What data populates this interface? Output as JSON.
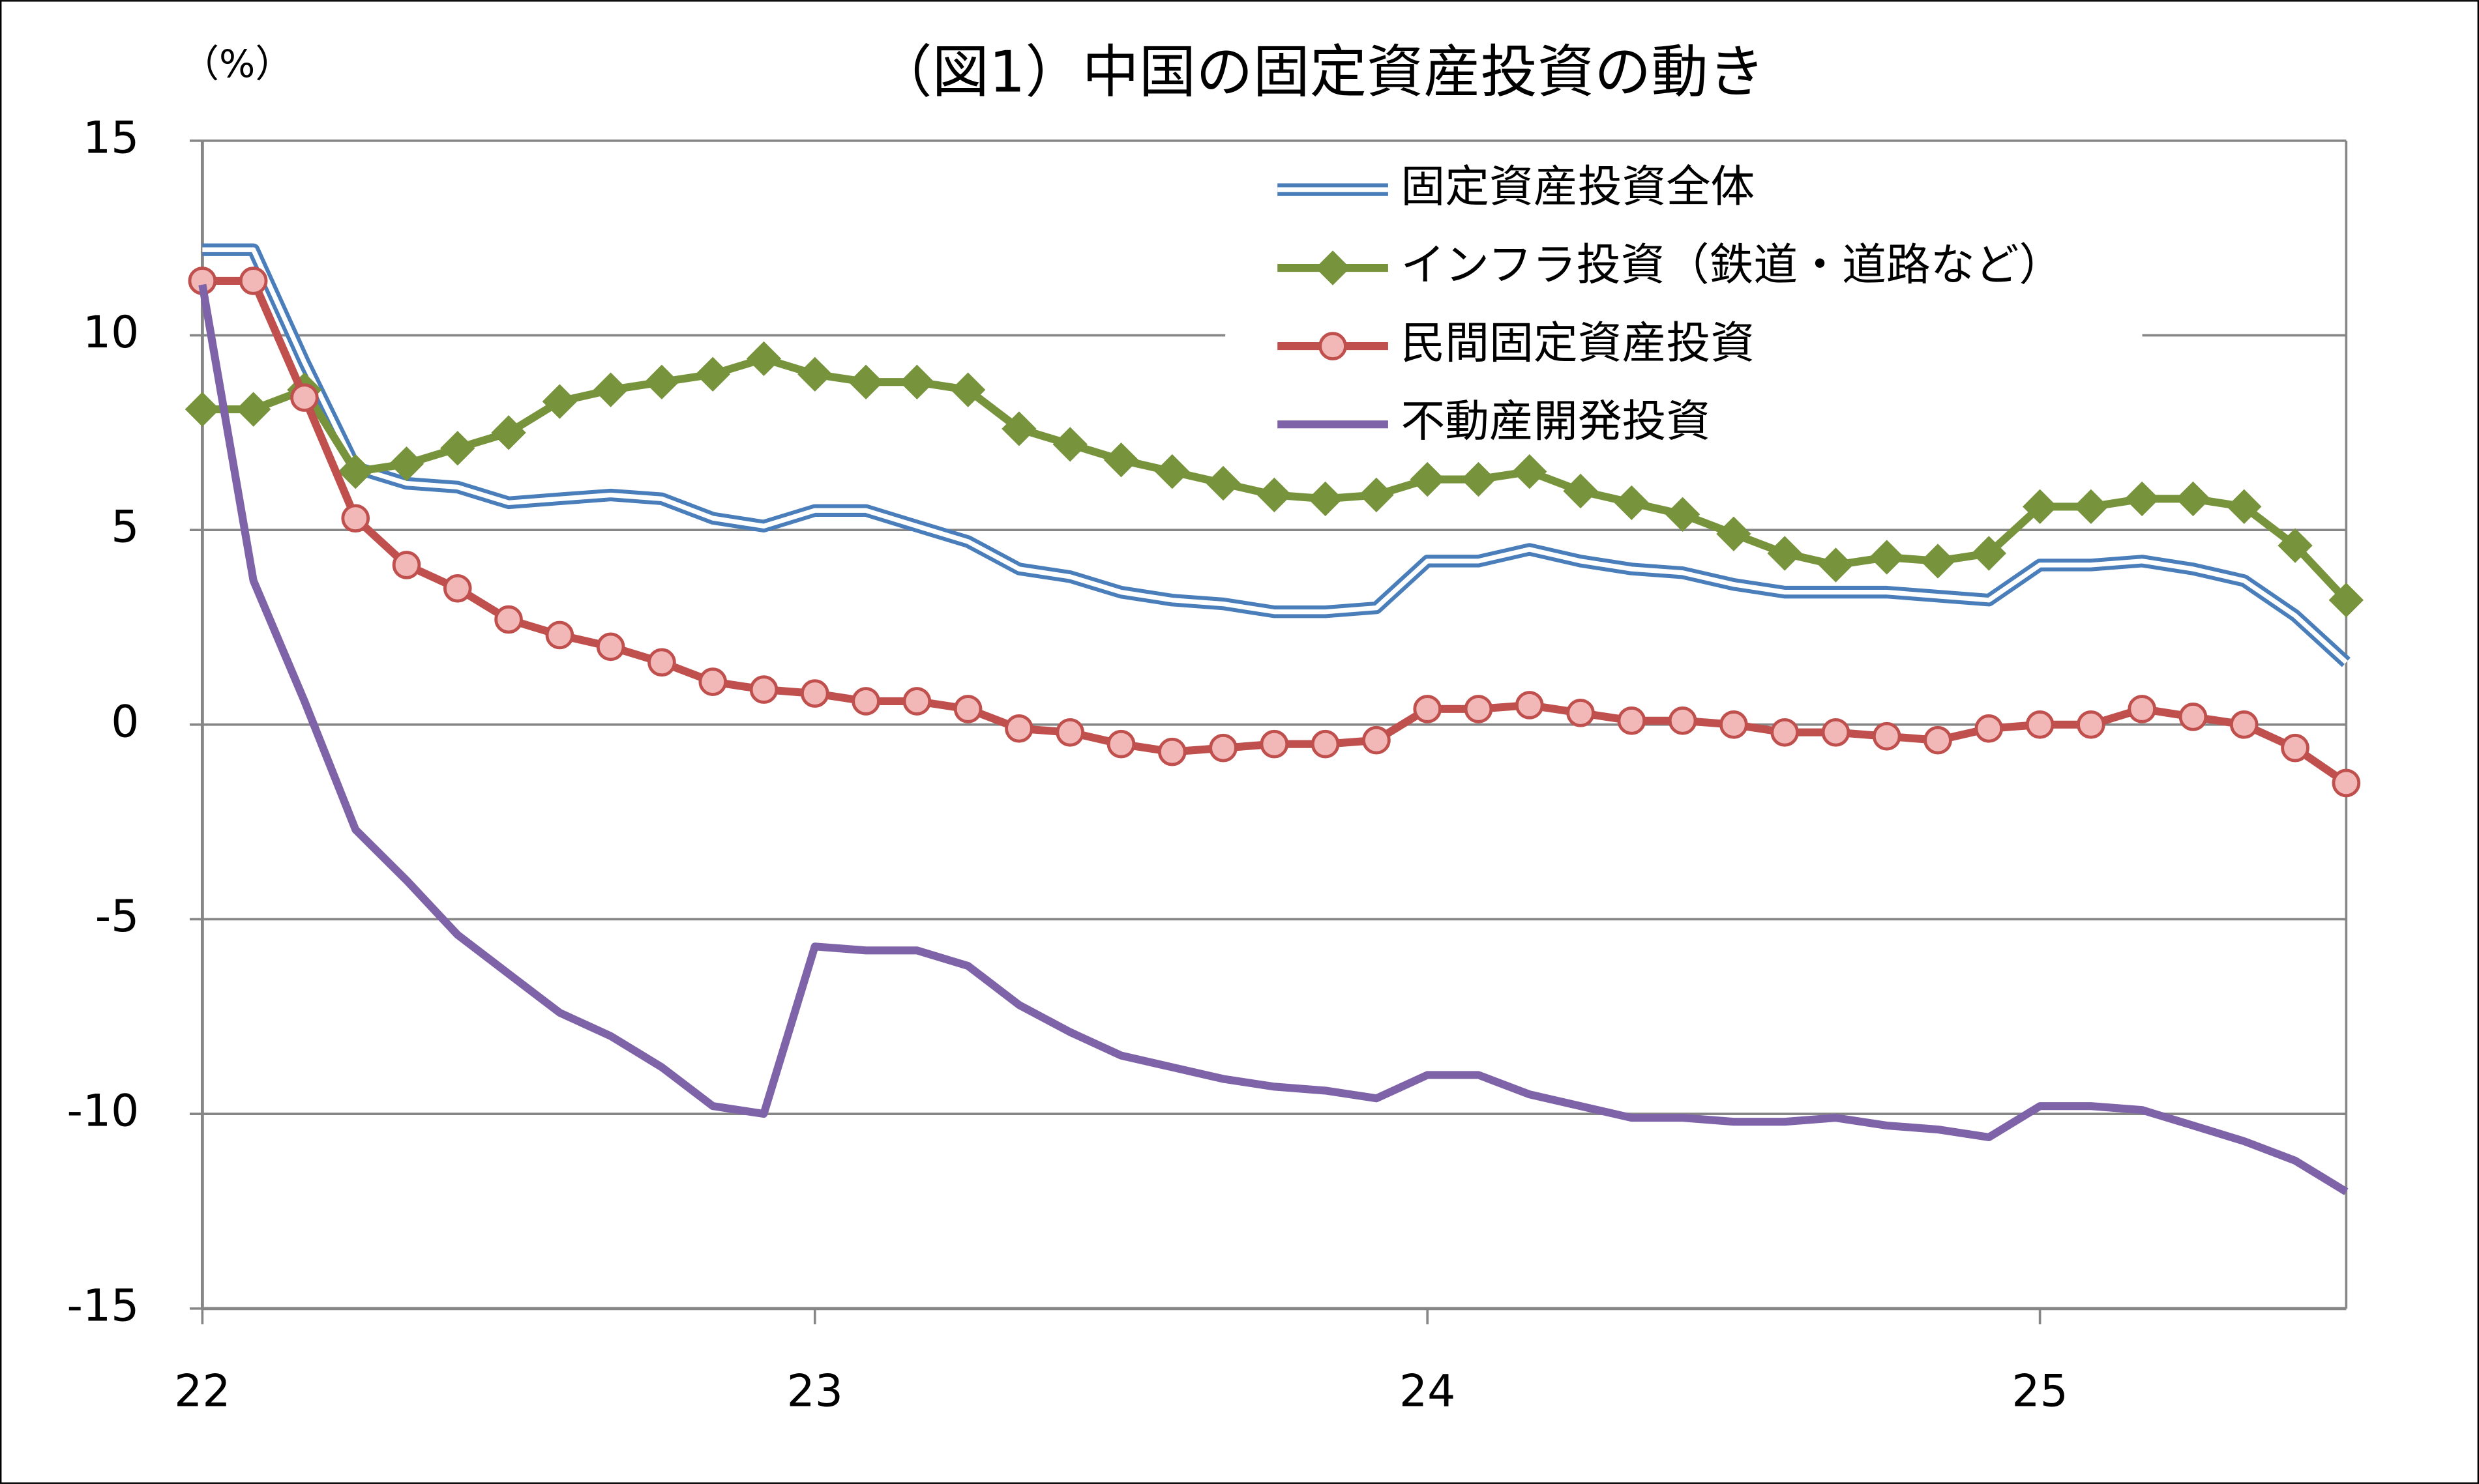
{
  "chart_data": {
    "type": "line",
    "title": "（図1）中国の固定資産投資の動き",
    "y_label": "（%）",
    "categories": [
      "22",
      null,
      null,
      null,
      null,
      null,
      null,
      null,
      null,
      null,
      null,
      null,
      "23",
      null,
      null,
      null,
      null,
      null,
      null,
      null,
      null,
      null,
      null,
      null,
      "24",
      null,
      null,
      null,
      null,
      null,
      null,
      null,
      null,
      null,
      null,
      null,
      "25",
      null,
      null,
      null,
      null,
      null,
      null
    ],
    "ylim": [
      -15,
      15
    ],
    "yticks": [
      -15,
      -10,
      -5,
      0,
      5,
      10,
      15
    ],
    "grid": true,
    "series": [
      {
        "name": "固定資産投資全体",
        "color": "#4a7ebb",
        "style": "double",
        "values": [
          12.2,
          12.2,
          9.3,
          6.6,
          6.2,
          6.1,
          5.7,
          5.8,
          5.9,
          5.8,
          5.3,
          5.1,
          5.5,
          5.5,
          5.1,
          4.7,
          4.0,
          3.8,
          3.4,
          3.2,
          3.1,
          2.9,
          2.9,
          3.0,
          4.2,
          4.2,
          4.5,
          4.2,
          4.0,
          3.9,
          3.6,
          3.4,
          3.4,
          3.4,
          3.3,
          3.2,
          4.1,
          4.1,
          4.2,
          4.0,
          3.7,
          2.8,
          1.6
        ]
      },
      {
        "name": "インフラ投資（鉄道・道路など）",
        "color": "#77933c",
        "marker": "diamond",
        "values": [
          8.1,
          8.1,
          8.6,
          6.5,
          6.7,
          7.1,
          7.5,
          8.3,
          8.6,
          8.8,
          9.0,
          9.4,
          9.0,
          8.8,
          8.8,
          8.6,
          7.6,
          7.2,
          6.8,
          6.5,
          6.2,
          5.9,
          5.8,
          5.9,
          6.3,
          6.3,
          6.5,
          6.0,
          5.7,
          5.4,
          4.9,
          4.4,
          4.1,
          4.3,
          4.2,
          4.4,
          5.6,
          5.6,
          5.8,
          5.8,
          5.6,
          4.6,
          3.2
        ]
      },
      {
        "name": "民間固定資産投資",
        "color": "#c0504d",
        "marker": "circle",
        "marker_fill": "#f2b8b8",
        "values": [
          11.4,
          11.4,
          8.4,
          5.3,
          4.1,
          3.5,
          2.7,
          2.3,
          2.0,
          1.6,
          1.1,
          0.9,
          0.8,
          0.6,
          0.6,
          0.4,
          -0.1,
          -0.2,
          -0.5,
          -0.7,
          -0.6,
          -0.5,
          -0.5,
          -0.4,
          0.4,
          0.4,
          0.5,
          0.3,
          0.1,
          0.1,
          0.0,
          -0.2,
          -0.2,
          -0.3,
          -0.4,
          -0.1,
          0.0,
          0.0,
          0.4,
          0.2,
          0.0,
          -0.6,
          -1.5
        ]
      },
      {
        "name": "不動産開発投資",
        "color": "#7f63a8",
        "values": [
          11.3,
          3.7,
          0.6,
          -2.7,
          -4.0,
          -5.4,
          -6.4,
          -7.4,
          -8.0,
          -8.8,
          -9.8,
          -10.0,
          -5.7,
          -5.8,
          -5.8,
          -6.2,
          -7.2,
          -7.9,
          -8.5,
          -8.8,
          -9.1,
          -9.3,
          -9.4,
          -9.6,
          -9.0,
          -9.0,
          -9.5,
          -9.8,
          -10.1,
          -10.1,
          -10.2,
          -10.2,
          -10.1,
          -10.3,
          -10.4,
          -10.6,
          -9.8,
          -9.8,
          -9.9,
          -10.3,
          -10.7,
          -11.2,
          -12.0
        ]
      }
    ]
  }
}
